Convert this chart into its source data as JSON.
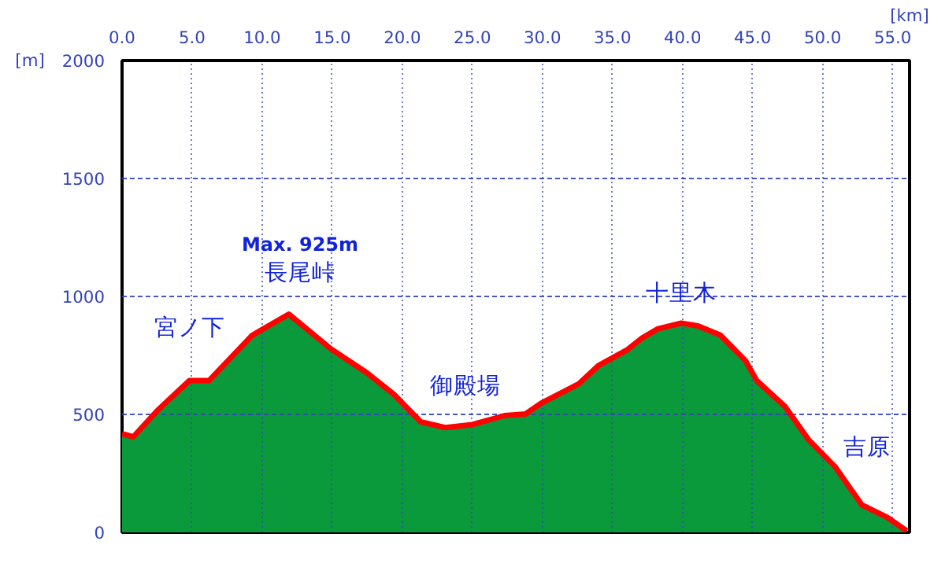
{
  "chart_data": {
    "type": "area",
    "xlabel": "[km]",
    "ylabel": "[m]",
    "x": [
      0,
      0.8,
      2.6,
      4.8,
      6.2,
      9.3,
      11.9,
      14.9,
      17.5,
      19.4,
      21.3,
      23.1,
      25.0,
      27.3,
      28.8,
      29.9,
      32.6,
      34.0,
      36.0,
      37.1,
      38.2,
      39.9,
      41.1,
      42.7,
      44.5,
      45.3,
      47.3,
      49.0,
      50.9,
      52.8,
      54.6,
      56.0
    ],
    "series": [
      {
        "color": "#0a9a3c",
        "values": [
          418,
          405,
          521,
          643,
          643,
          836,
          925,
          778,
          675,
          585,
          469,
          444,
          457,
          495,
          502,
          547,
          630,
          707,
          772,
          823,
          862,
          887,
          875,
          836,
          727,
          643,
          534,
          392,
          277,
          116,
          64,
          6
        ]
      }
    ],
    "xlim": [
      0,
      56.2
    ],
    "ylim": [
      0,
      2000
    ],
    "xticks": [
      {
        "value": 0,
        "label": "0.0"
      },
      {
        "value": 5,
        "label": "5.0"
      },
      {
        "value": 10,
        "label": "10.0"
      },
      {
        "value": 15,
        "label": "15.0"
      },
      {
        "value": 20,
        "label": "20.0"
      },
      {
        "value": 25,
        "label": "25.0"
      },
      {
        "value": 30,
        "label": "30.0"
      },
      {
        "value": 35,
        "label": "35.0"
      },
      {
        "value": 40,
        "label": "40.0"
      },
      {
        "value": 45,
        "label": "45.0"
      },
      {
        "value": 50,
        "label": "50.0"
      },
      {
        "value": 55,
        "label": "55.0"
      }
    ],
    "yticks": [
      0,
      500,
      1000,
      1500,
      2000
    ],
    "grid": true,
    "annotations": [
      "Max. 925m",
      "長尾峠",
      "宮ノ下",
      "御殿場",
      "十里木",
      "吉原"
    ]
  }
}
